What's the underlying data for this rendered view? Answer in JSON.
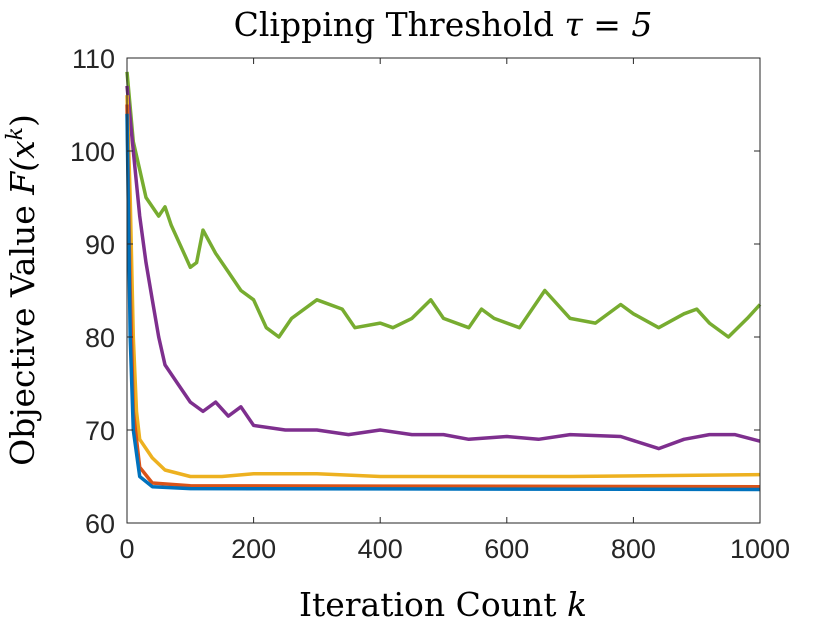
{
  "chart_data": {
    "type": "line",
    "title": "Clipping Threshold",
    "title_math": "τ = 5",
    "xlabel": "Iteration Count",
    "xlabel_math": "k",
    "ylabel": "Objective Value",
    "ylabel_math": "F(x",
    "ylabel_sup": "k",
    "ylabel_close": ")",
    "xlim": [
      0,
      1000
    ],
    "ylim": [
      60,
      110
    ],
    "xticks": [
      0,
      200,
      400,
      600,
      800,
      1000
    ],
    "yticks": [
      60,
      70,
      80,
      90,
      100,
      110
    ],
    "grid": false,
    "series": [
      {
        "name": "series-green",
        "color": "#77AC30",
        "x": [
          0,
          10,
          20,
          30,
          50,
          60,
          70,
          90,
          100,
          110,
          120,
          140,
          160,
          180,
          200,
          220,
          240,
          260,
          300,
          340,
          360,
          400,
          420,
          450,
          480,
          500,
          540,
          560,
          580,
          620,
          660,
          700,
          740,
          780,
          800,
          840,
          880,
          900,
          920,
          950,
          980,
          1000
        ],
        "y": [
          108.5,
          101,
          98,
          95,
          93,
          94,
          92,
          89,
          87.5,
          88,
          91.5,
          89,
          87,
          85,
          84,
          81,
          80,
          82,
          84,
          83,
          81,
          81.5,
          81,
          82,
          84,
          82,
          81,
          83,
          82,
          81,
          85,
          82,
          81.5,
          83.5,
          82.5,
          81,
          82.5,
          83,
          81.5,
          80,
          82,
          83.5
        ]
      },
      {
        "name": "series-purple",
        "color": "#7E2F8E",
        "x": [
          0,
          10,
          20,
          30,
          40,
          50,
          60,
          80,
          100,
          120,
          140,
          160,
          180,
          200,
          250,
          300,
          350,
          400,
          450,
          500,
          540,
          600,
          650,
          700,
          780,
          840,
          880,
          920,
          960,
          1000
        ],
        "y": [
          107,
          100,
          93,
          88,
          84,
          80,
          77,
          75,
          73,
          72,
          73,
          71.5,
          72.5,
          70.5,
          70,
          70,
          69.5,
          70,
          69.5,
          69.5,
          69,
          69.3,
          69,
          69.5,
          69.3,
          68,
          69,
          69.5,
          69.5,
          68.8
        ]
      },
      {
        "name": "series-yellow",
        "color": "#EDB120",
        "x": [
          0,
          5,
          10,
          15,
          20,
          40,
          60,
          100,
          150,
          200,
          300,
          400,
          500,
          700,
          1000
        ],
        "y": [
          106,
          95,
          80,
          72,
          69,
          67,
          65.7,
          65,
          65,
          65.3,
          65.3,
          65,
          65,
          65,
          65.2
        ]
      },
      {
        "name": "series-red",
        "color": "#D95319",
        "x": [
          0,
          5,
          10,
          20,
          40,
          100,
          1000
        ],
        "y": [
          105,
          85,
          72,
          66,
          64.3,
          64,
          63.9
        ]
      },
      {
        "name": "series-blue",
        "color": "#0072BD",
        "x": [
          0,
          5,
          10,
          20,
          40,
          100,
          1000
        ],
        "y": [
          104,
          80,
          70,
          65,
          63.9,
          63.7,
          63.6
        ]
      }
    ]
  }
}
